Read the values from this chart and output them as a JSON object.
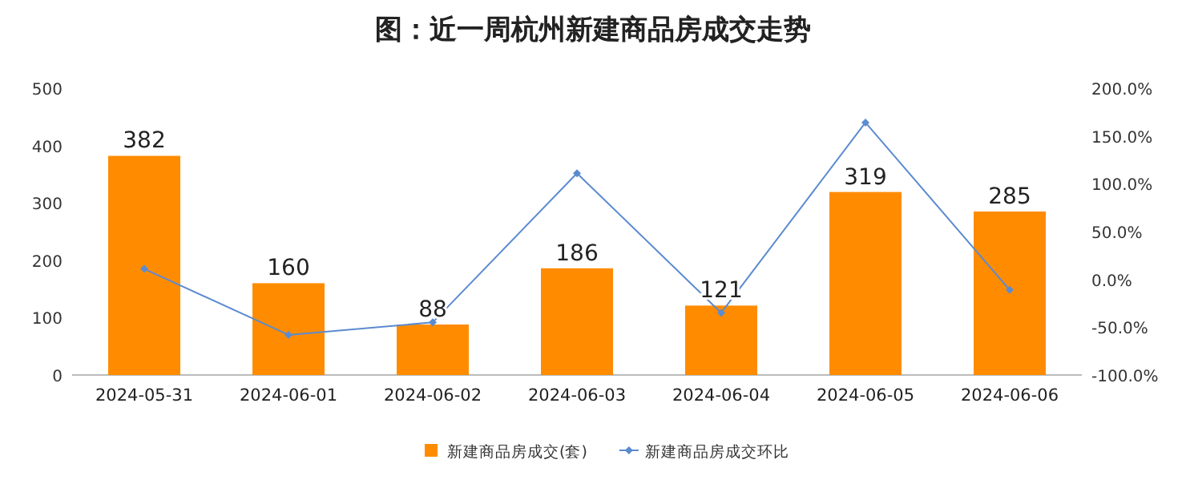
{
  "chart_data": {
    "type": "bar",
    "title": "图：近一周杭州新建商品房成交走势",
    "categories": [
      "2024-05-31",
      "2024-06-01",
      "2024-06-02",
      "2024-06-03",
      "2024-06-04",
      "2024-06-05",
      "2024-06-06"
    ],
    "series": [
      {
        "name": "新建商品房成交(套)",
        "color": "#ff8c00",
        "values": [
          382,
          160,
          88,
          186,
          121,
          319,
          285
        ],
        "value_labels": [
          "382",
          "160",
          "88",
          "186",
          "121",
          "319",
          "285"
        ]
      },
      {
        "name": "新建商品房成交环比",
        "type": "line",
        "axis": "y2",
        "color": "#5b8bd0",
        "marker": "diamond",
        "values": [
          11,
          -58,
          -45,
          111,
          -35,
          164,
          -11
        ]
      }
    ],
    "ylim": [
      0,
      500
    ],
    "yticks": [
      0,
      100,
      200,
      300,
      400,
      500
    ],
    "y2lim": [
      -100,
      200
    ],
    "y2ticks": [
      {
        "value": -100,
        "label": "-100.0%"
      },
      {
        "value": -50,
        "label": "-50.0%"
      },
      {
        "value": 0,
        "label": "0.0%"
      },
      {
        "value": 50,
        "label": "50.0%"
      },
      {
        "value": 100,
        "label": "100.0%"
      },
      {
        "value": 150,
        "label": "150.0%"
      },
      {
        "value": 200,
        "label": "200.0%"
      }
    ],
    "grid": false,
    "legend": "bottom"
  }
}
